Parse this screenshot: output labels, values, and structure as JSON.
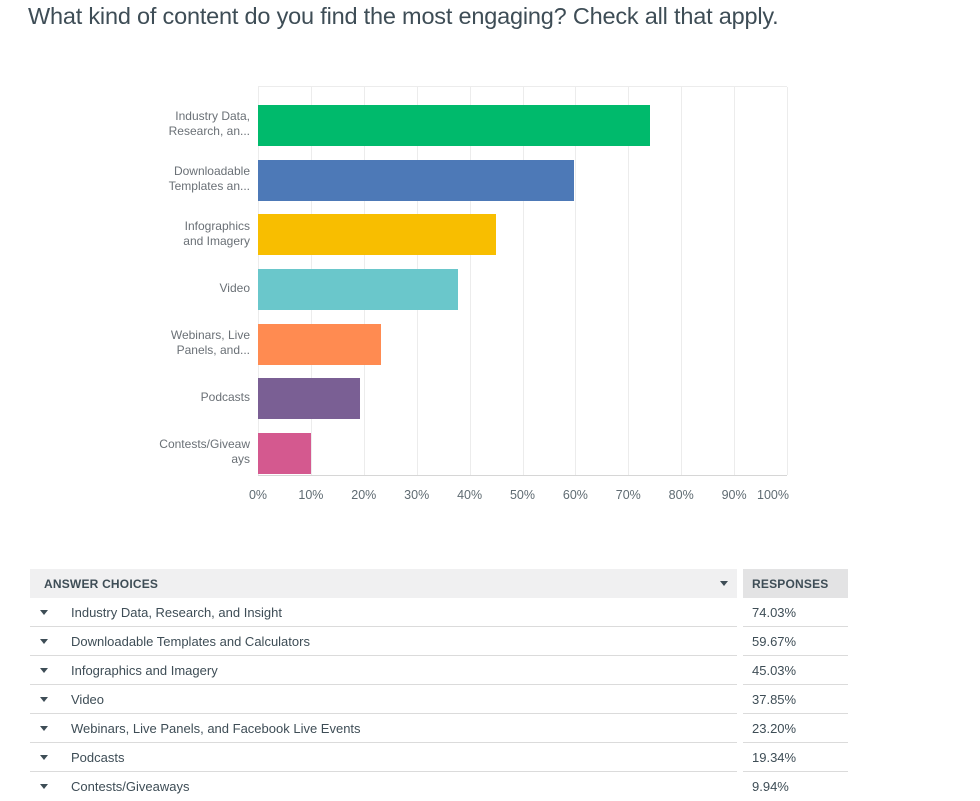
{
  "page_title": "What kind of content do you find the most engaging? Check all that apply.",
  "chart_data": {
    "type": "bar",
    "orientation": "horizontal",
    "title": "",
    "xlabel": "",
    "ylabel": "",
    "categories": [
      "Industry Data, Research, and Insight",
      "Downloadable Templates and Calculators",
      "Infographics and Imagery",
      "Video",
      "Webinars, Live Panels, and Facebook Live Events",
      "Podcasts",
      "Contests/Giveaways"
    ],
    "category_labels_wrapped": [
      [
        "Industry Data,",
        "Research, an..."
      ],
      [
        "Downloadable",
        "Templates an..."
      ],
      [
        "Infographics",
        "and Imagery"
      ],
      [
        "Video"
      ],
      [
        "Webinars, Live",
        "Panels, and..."
      ],
      [
        "Podcasts"
      ],
      [
        "Contests/Giveaw",
        "ays"
      ]
    ],
    "values": [
      74.03,
      59.67,
      45.03,
      37.85,
      23.2,
      19.34,
      9.94
    ],
    "value_format": "percent",
    "bar_colors": [
      "#00BA6C",
      "#4D79B7",
      "#F8BE00",
      "#6AC7CB",
      "#FF8B51",
      "#7A5F94",
      "#D4598F"
    ],
    "xlim": [
      0,
      100
    ],
    "x_ticks": [
      "0%",
      "10%",
      "20%",
      "30%",
      "40%",
      "50%",
      "60%",
      "70%",
      "80%",
      "90%",
      "100%"
    ],
    "grid": "vertical-major",
    "legend": "none"
  },
  "table": {
    "columns": [
      "ANSWER CHOICES",
      "RESPONSES"
    ],
    "sort_icon": "triangle-down-icon",
    "row_expand_icon": "triangle-down-icon",
    "rows": [
      {
        "label": "Industry Data, Research, and Insight",
        "value": "74.03%"
      },
      {
        "label": "Downloadable Templates and Calculators",
        "value": "59.67%"
      },
      {
        "label": "Infographics and Imagery",
        "value": "45.03%"
      },
      {
        "label": "Video",
        "value": "37.85%"
      },
      {
        "label": "Webinars, Live Panels, and Facebook Live Events",
        "value": "23.20%"
      },
      {
        "label": "Podcasts",
        "value": "19.34%"
      },
      {
        "label": "Contests/Giveaways",
        "value": "9.94%"
      }
    ]
  },
  "colors": {
    "title_text": "#3E4D56",
    "category_label_text": "#6A7076",
    "axis_tick_text": "#5F6B72",
    "gridline": "#ECECEC",
    "axis_line": "#D6D6D6",
    "table_header_answers_bg": "#F0F0F1",
    "table_header_responses_bg": "#E3E3E4",
    "table_row_separator": "#DBDBDB",
    "table_text": "#3E4D56"
  }
}
